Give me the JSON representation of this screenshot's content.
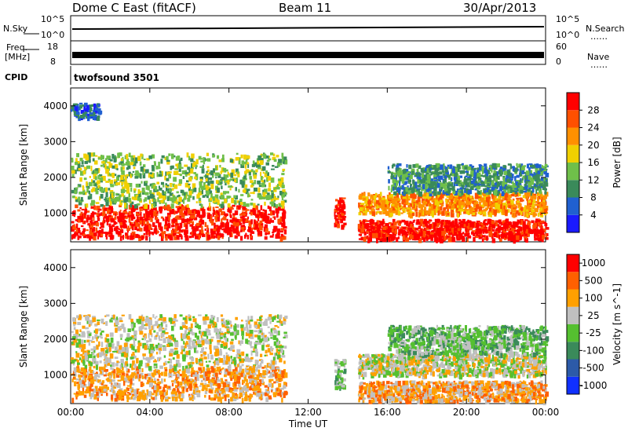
{
  "header": {
    "station": "Dome C East (fitACF)",
    "beam": "Beam 11",
    "date": "30/Apr/2013"
  },
  "strip_panels": {
    "nsky": {
      "label": "N.Sky",
      "ticks": [
        "10^5",
        "10^0"
      ]
    },
    "nsearch": {
      "label": "N.Search",
      "ticks": [
        "10^5",
        "10^0"
      ]
    },
    "freq": {
      "label_top": "Freq.",
      "label_unit": "[MHz]",
      "ticks": [
        "18",
        "8"
      ]
    },
    "nave": {
      "label": "Nave",
      "ticks": [
        "60",
        "0"
      ]
    },
    "cpid": {
      "label": "CPID",
      "value": "twofsound 3501"
    }
  },
  "chart_data": [
    {
      "type": "heatmap",
      "panel": "power",
      "xlabel": "",
      "ylabel": "Slant Range [km]",
      "x_ticks": [
        "00:00",
        "04:00",
        "08:00",
        "12:00",
        "16:00",
        "20:00",
        "00:00"
      ],
      "y_ticks": [
        "1000",
        "2000",
        "3000",
        "4000"
      ],
      "ylim": [
        200,
        4500
      ],
      "xlim_hours": [
        0,
        24
      ],
      "colorbar": {
        "label": "Power [dB]",
        "ticks": [
          "4",
          "8",
          "12",
          "16",
          "20",
          "24",
          "28"
        ],
        "colors": [
          "#1a1aff",
          "#2060d0",
          "#3a8a5a",
          "#6fbf4a",
          "#f0d000",
          "#ff9000",
          "#ff5000",
          "#ff0000"
        ]
      },
      "regions": [
        {
          "t0": 0.0,
          "t1": 10.8,
          "r0": 350,
          "r1": 1250,
          "level": 7
        },
        {
          "t0": 0.0,
          "t1": 10.8,
          "r0": 1250,
          "r1": 2700,
          "level": 3
        },
        {
          "t0": 13.3,
          "t1": 13.8,
          "r0": 650,
          "r1": 1450,
          "level": 7
        },
        {
          "t0": 14.5,
          "t1": 24.0,
          "r0": 300,
          "r1": 850,
          "level": 7
        },
        {
          "t0": 14.5,
          "t1": 24.0,
          "r0": 1000,
          "r1": 1600,
          "level": 5
        },
        {
          "t0": 16.0,
          "t1": 24.0,
          "r0": 1600,
          "r1": 2400,
          "level": 2
        },
        {
          "t0": 0.0,
          "t1": 1.5,
          "r0": 3700,
          "r1": 4100,
          "level": 1
        }
      ]
    },
    {
      "type": "heatmap",
      "panel": "velocity",
      "xlabel": "Time UT",
      "ylabel": "Slant Range [km]",
      "x_ticks": [
        "00:00",
        "04:00",
        "08:00",
        "12:00",
        "16:00",
        "20:00",
        "00:00"
      ],
      "y_ticks": [
        "1000",
        "2000",
        "3000",
        "4000"
      ],
      "ylim": [
        200,
        4500
      ],
      "xlim_hours": [
        0,
        24
      ],
      "colorbar": {
        "label": "Velocity [m s^-1]",
        "ticks": [
          "1000",
          "500",
          "100",
          "25",
          "-25",
          "-100",
          "-500",
          "-1000"
        ],
        "colors": [
          "#1030ff",
          "#2c5aa8",
          "#3a8a5a",
          "#55c030",
          "#c0c0c0",
          "#ffa000",
          "#ff6000",
          "#ff0000"
        ]
      },
      "regions": [
        {
          "t0": 0.0,
          "t1": 10.8,
          "r0": 350,
          "r1": 1250,
          "level": 5
        },
        {
          "t0": 0.0,
          "t1": 10.8,
          "r0": 1250,
          "r1": 2700,
          "level": 4
        },
        {
          "t0": 13.3,
          "t1": 13.8,
          "r0": 650,
          "r1": 1450,
          "level": 3
        },
        {
          "t0": 14.5,
          "t1": 24.0,
          "r0": 300,
          "r1": 850,
          "level": 5
        },
        {
          "t0": 14.5,
          "t1": 24.0,
          "r0": 1000,
          "r1": 1600,
          "level": 4
        },
        {
          "t0": 16.0,
          "t1": 24.0,
          "r0": 1600,
          "r1": 2400,
          "level": 3
        }
      ]
    }
  ]
}
